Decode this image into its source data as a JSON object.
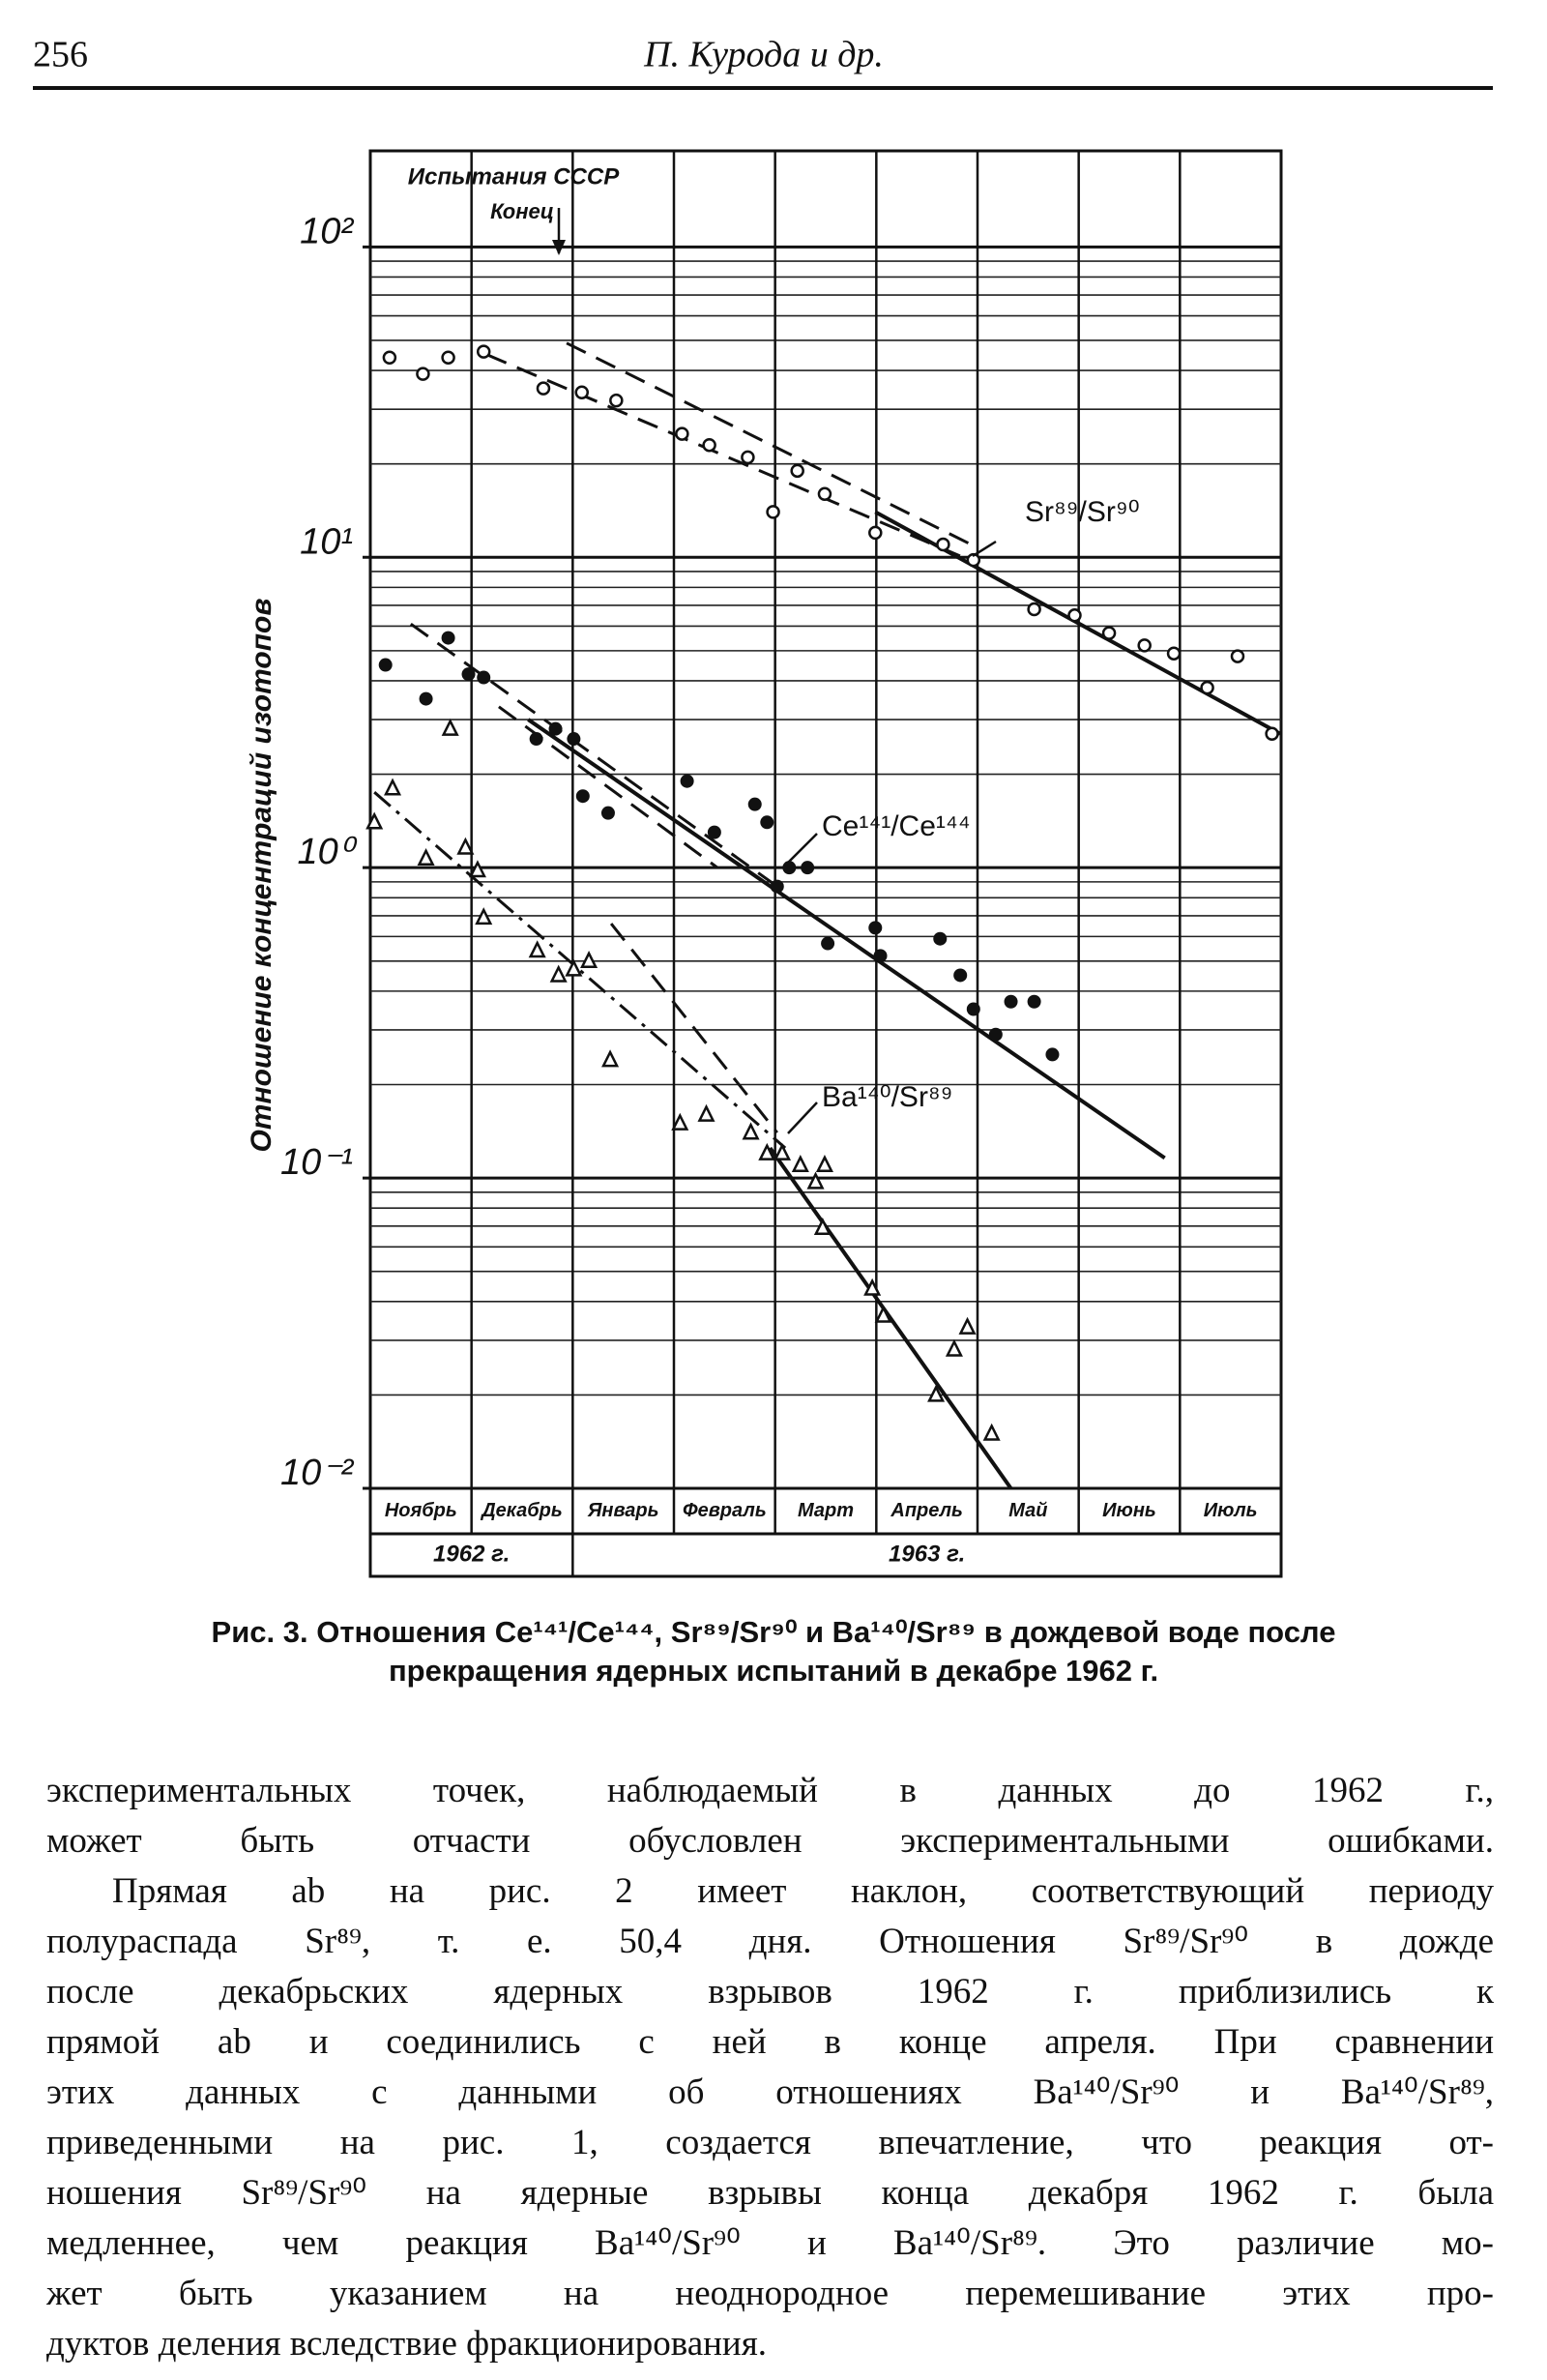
{
  "header": {
    "page_number": "256",
    "running_title": "П. Курода и др."
  },
  "chart_data": {
    "type": "scatter",
    "log_y": true,
    "y_label": "Отношение концентраций изотопов",
    "annotations": [
      "Испытания СССР",
      "Конец"
    ],
    "categories": [
      "Ноябрь",
      "Декабрь",
      "Январь",
      "Февраль",
      "Март",
      "Апрель",
      "Май",
      "Июнь",
      "Июль"
    ],
    "years": [
      {
        "label": "1962 г.",
        "span": [
          0,
          2
        ]
      },
      {
        "label": "1963 г.",
        "span": [
          2,
          9
        ]
      }
    ],
    "xlim": [
      0,
      9
    ],
    "ylim": [
      0.01,
      204
    ],
    "yticks": [
      {
        "value": 0.01,
        "label": "10⁻²"
      },
      {
        "value": 0.1,
        "label": "10⁻¹"
      },
      {
        "value": 1,
        "label": "10⁰"
      },
      {
        "value": 10,
        "label": "10¹"
      },
      {
        "value": 100,
        "label": "10²"
      }
    ],
    "minor_yticks": [
      0.02,
      0.03,
      0.04,
      0.05,
      0.06,
      0.07,
      0.08,
      0.09,
      0.2,
      0.3,
      0.4,
      0.5,
      0.6,
      0.7,
      0.8,
      0.9,
      2,
      3,
      4,
      5,
      6,
      7,
      8,
      9,
      20,
      30,
      40,
      50,
      60,
      70,
      80,
      90
    ],
    "series": [
      {
        "name": "Sr⁸⁹/Sr⁹⁰",
        "marker": "open-circle",
        "color": "#111",
        "x": [
          0.19,
          0.52,
          0.77,
          1.12,
          1.71,
          2.09,
          2.43,
          3.08,
          3.35,
          3.73,
          3.98,
          4.22,
          4.49,
          4.99,
          5.66,
          5.96,
          6.56,
          6.96,
          7.3,
          7.65,
          7.94,
          8.27,
          8.57,
          8.91
        ],
        "values": [
          44,
          39,
          44,
          46,
          35,
          34,
          32,
          25,
          23,
          21,
          14,
          19,
          16,
          12,
          11,
          9.8,
          6.8,
          6.5,
          5.7,
          5.2,
          4.9,
          3.8,
          4.8,
          2.7
        ]
      },
      {
        "name": "Ce¹⁴¹/Ce¹⁴⁴",
        "marker": "filled-circle",
        "color": "#111",
        "x": [
          0.15,
          0.55,
          0.77,
          0.97,
          1.12,
          1.64,
          1.83,
          2.01,
          2.1,
          2.35,
          3.13,
          3.4,
          3.8,
          3.92,
          4.02,
          4.14,
          4.32,
          4.52,
          4.99,
          5.04,
          5.63,
          5.83,
          5.96,
          6.18,
          6.33,
          6.56,
          6.74
        ],
        "values": [
          4.5,
          3.5,
          5.5,
          4.2,
          4.1,
          2.6,
          2.8,
          2.6,
          1.7,
          1.5,
          1.9,
          1.3,
          1.6,
          1.4,
          0.87,
          1.0,
          1.0,
          0.57,
          0.64,
          0.52,
          0.59,
          0.45,
          0.35,
          0.29,
          0.37,
          0.37,
          0.25
        ]
      },
      {
        "name": "Ba¹⁴⁰/Sr⁸⁹",
        "marker": "open-triangle",
        "color": "#111",
        "x": [
          0.04,
          0.22,
          0.55,
          0.79,
          0.94,
          1.06,
          1.12,
          1.65,
          1.86,
          2.01,
          2.16,
          2.37,
          3.06,
          3.32,
          3.76,
          3.92,
          4.07,
          4.25,
          4.4,
          4.49,
          4.47,
          4.96,
          5.07,
          5.59,
          5.77,
          5.9,
          6.14
        ],
        "values": [
          1.4,
          1.8,
          1.07,
          2.8,
          1.16,
          0.98,
          0.69,
          0.54,
          0.45,
          0.47,
          0.5,
          0.24,
          0.15,
          0.16,
          0.14,
          0.12,
          0.12,
          0.11,
          0.097,
          0.11,
          0.069,
          0.044,
          0.036,
          0.02,
          0.028,
          0.033,
          0.015
        ]
      }
    ],
    "fits": [
      {
        "style": "dashed",
        "x": [
          1.94,
          6.01
        ],
        "y": [
          49,
          10.7
        ]
      },
      {
        "style": "dashed",
        "x": [
          1.15,
          5.89
        ],
        "y": [
          45,
          9.9
        ]
      },
      {
        "style": "solid",
        "x": [
          4.99,
          8.99
        ],
        "y": [
          14,
          2.7
        ]
      },
      {
        "style": "dashed",
        "x": [
          0.4,
          4.02
        ],
        "y": [
          6.1,
          0.87
        ]
      },
      {
        "style": "dashed",
        "x": [
          1.27,
          3.43
        ],
        "y": [
          3.3,
          1.0
        ]
      },
      {
        "style": "solid",
        "x": [
          1.56,
          7.85
        ],
        "y": [
          3.0,
          0.116
        ]
      },
      {
        "style": "dashdot",
        "x": [
          0.04,
          4.1
        ],
        "y": [
          1.75,
          0.125
        ]
      },
      {
        "style": "dashed",
        "x": [
          2.38,
          4.02
        ],
        "y": [
          0.66,
          0.14
        ]
      },
      {
        "style": "solid",
        "x": [
          3.95,
          6.33
        ],
        "y": [
          0.125,
          0.01
        ]
      }
    ]
  },
  "caption": {
    "label": "Рис. 3.",
    "lines": [
      "Отношения Ce¹⁴¹/Ce¹⁴⁴, Sr⁸⁹/Sr⁹⁰ и Ba¹⁴⁰/Sr⁸⁹ в дождевой воде после",
      "прекращения ядерных испытаний в декабре 1962 г."
    ]
  },
  "body": {
    "lines": [
      "экспериментальных точек, наблюдаемый в данных до 1962 г.,",
      "может быть отчасти обусловлен экспериментальными ошибками.",
      "Прямая ab на рис. 2 имеет наклон, соответствующий периоду",
      "полураспада Sr⁸⁹, т. е. 50,4 дня. Отношения Sr⁸⁹/Sr⁹⁰ в дожде",
      "после декабрьских ядерных взрывов 1962 г. приблизились к",
      "прямой ab и соединились с ней в конце апреля. При сравнении",
      "этих данных с данными об отношениях Ba¹⁴⁰/Sr⁹⁰ и Ba¹⁴⁰/Sr⁸⁹,",
      "приведенными на рис. 1, создается впечатление, что реакция от-",
      "ношения Sr⁸⁹/Sr⁹⁰ на ядерные взрывы конца декабря 1962 г. была",
      "медленнее, чем реакция Ba¹⁴⁰/Sr⁹⁰ и Ba¹⁴⁰/Sr⁸⁹. Это различие мо-",
      "жет быть указанием на неоднородное перемешивание этих про-",
      "дуктов деления вследствие фракционирования."
    ]
  }
}
